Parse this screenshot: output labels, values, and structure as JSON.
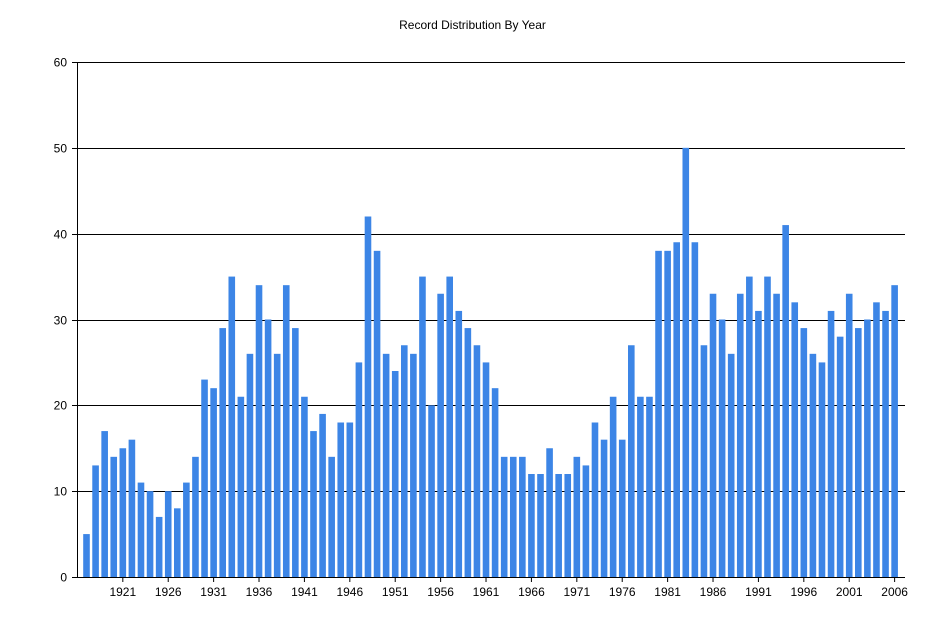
{
  "chart_data": {
    "type": "bar",
    "title": "Record Distribution By Year",
    "xlabel": "",
    "ylabel": "",
    "ylim": [
      0,
      60
    ],
    "yticks": [
      0,
      10,
      20,
      30,
      40,
      50,
      60
    ],
    "xtick_labels": [
      "1921",
      "1926",
      "1931",
      "1936",
      "1941",
      "1946",
      "1951",
      "1956",
      "1961",
      "1966",
      "1971",
      "1976",
      "1981",
      "1986",
      "1991",
      "1996",
      "2001",
      "2006"
    ],
    "grid": "horizontal",
    "bar_color": "#3C85E6",
    "categories": [
      "1917",
      "1918",
      "1919",
      "1920",
      "1921",
      "1922",
      "1923",
      "1924",
      "1925",
      "1926",
      "1927",
      "1928",
      "1929",
      "1930",
      "1931",
      "1932",
      "1933",
      "1934",
      "1935",
      "1936",
      "1937",
      "1938",
      "1939",
      "1940",
      "1941",
      "1942",
      "1943",
      "1944",
      "1945",
      "1946",
      "1947",
      "1948",
      "1949",
      "1950",
      "1951",
      "1952",
      "1953",
      "1954",
      "1955",
      "1956",
      "1957",
      "1958",
      "1959",
      "1960",
      "1961",
      "1962",
      "1963",
      "1964",
      "1965",
      "1966",
      "1967",
      "1968",
      "1969",
      "1970",
      "1971",
      "1972",
      "1973",
      "1974",
      "1975",
      "1976",
      "1977",
      "1978",
      "1979",
      "1980",
      "1981",
      "1982",
      "1983",
      "1984",
      "1985",
      "1986",
      "1987",
      "1988",
      "1989",
      "1990",
      "1991",
      "1992",
      "1993",
      "1994",
      "1995",
      "1996",
      "1997",
      "1998",
      "1999",
      "2000",
      "2001",
      "2002",
      "2003",
      "2004",
      "2005",
      "2006"
    ],
    "values": [
      5,
      13,
      17,
      14,
      15,
      16,
      11,
      10,
      7,
      10,
      8,
      11,
      14,
      23,
      22,
      29,
      35,
      21,
      26,
      34,
      30,
      26,
      34,
      29,
      21,
      17,
      19,
      14,
      18,
      18,
      25,
      42,
      38,
      26,
      24,
      27,
      26,
      35,
      20,
      33,
      35,
      31,
      29,
      27,
      25,
      22,
      14,
      14,
      14,
      12,
      12,
      15,
      12,
      12,
      14,
      13,
      18,
      16,
      21,
      16,
      27,
      21,
      21,
      38,
      38,
      39,
      50,
      39,
      27,
      33,
      30,
      26,
      33,
      35,
      31,
      35,
      33,
      41,
      32,
      29,
      26,
      25,
      31,
      28,
      33,
      29,
      30,
      32,
      31,
      34
    ]
  }
}
